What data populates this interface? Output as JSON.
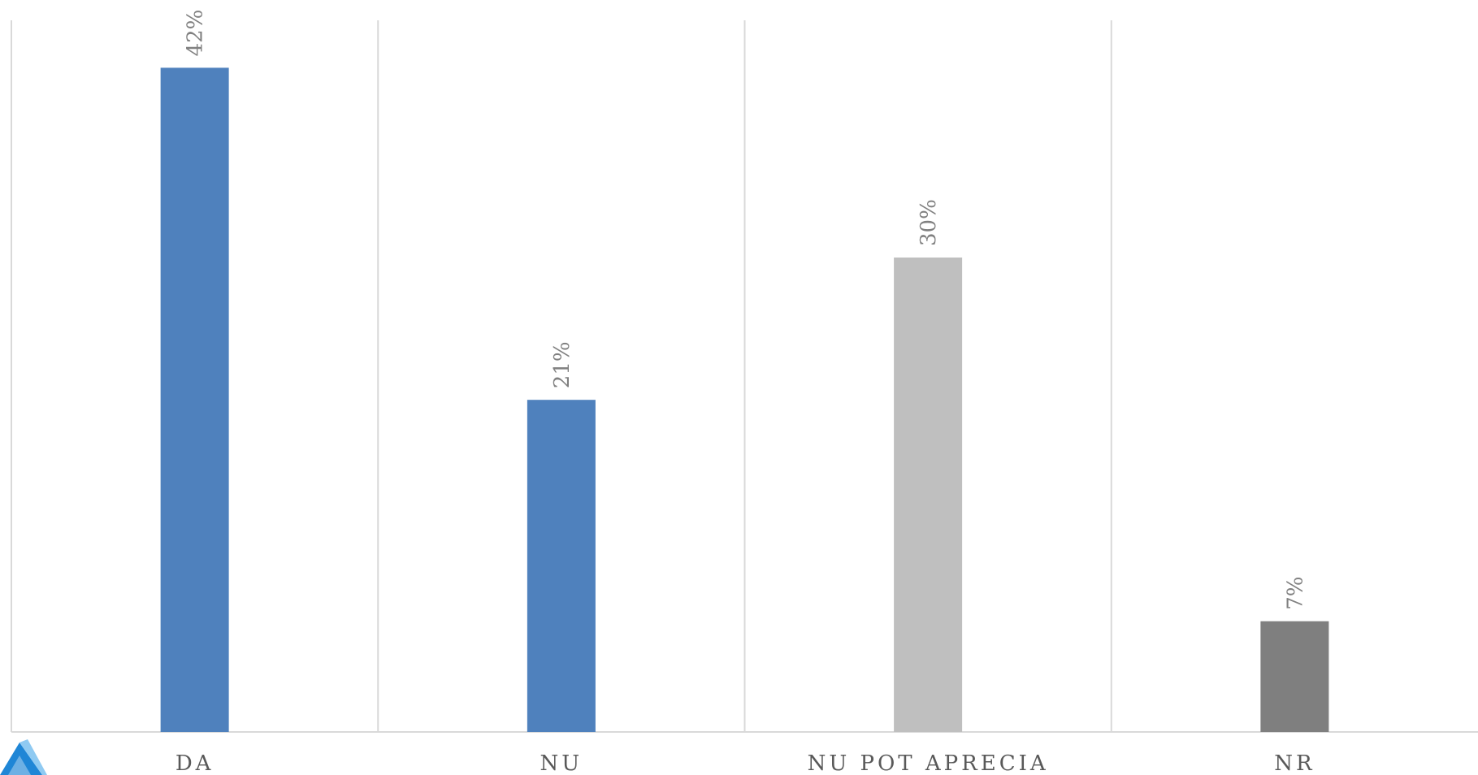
{
  "chart_data": {
    "type": "bar",
    "categories": [
      "DA",
      "NU",
      "NU POT APRECIA",
      "NR"
    ],
    "values": [
      42,
      21,
      30,
      7
    ],
    "data_labels": [
      "42%",
      "21%",
      "30%",
      "7%"
    ],
    "colors": [
      "#4f81bd",
      "#4f81bd",
      "#bfbfbf",
      "#7f7f7f"
    ],
    "title": "",
    "xlabel": "",
    "ylabel": "",
    "ylim": [
      0,
      45
    ],
    "grid": "vertical",
    "legend": "none"
  },
  "logo": {
    "icon": "logo-triangle-icon",
    "colors": [
      "#1f86d6",
      "#8fcaf2"
    ]
  }
}
